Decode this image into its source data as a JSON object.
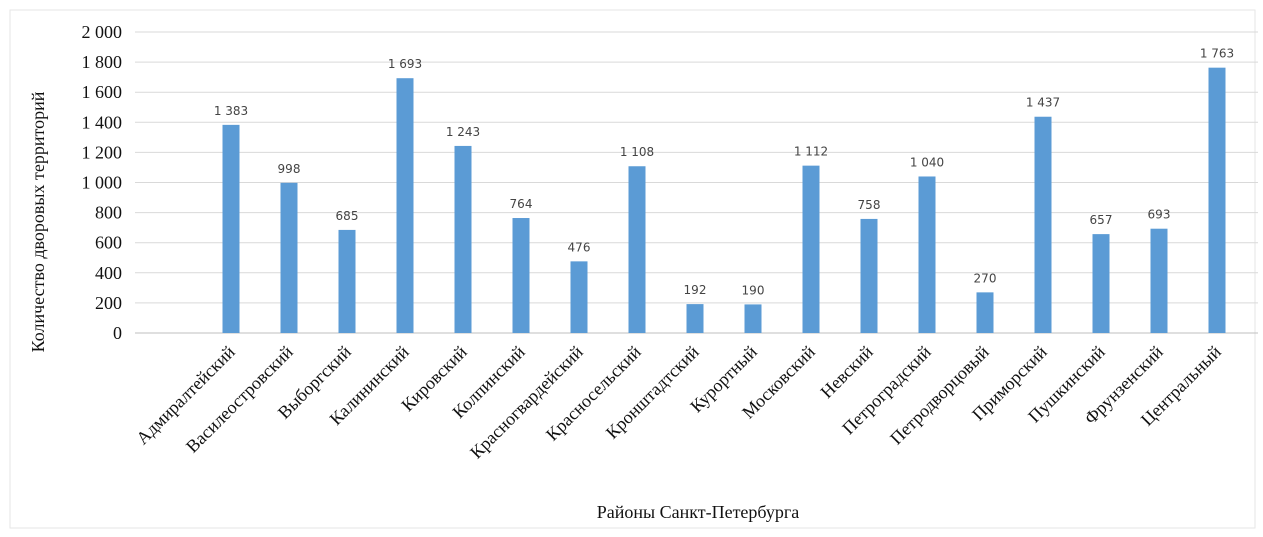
{
  "chart_data": {
    "type": "bar",
    "title": "",
    "xlabel": "Районы Санкт-Петербурга",
    "ylabel": "Количество дворовых территорий",
    "ylim": [
      0,
      2000
    ],
    "yticks": [
      0,
      200,
      400,
      600,
      800,
      1000,
      1200,
      1400,
      1600,
      1800,
      2000
    ],
    "ytick_labels": [
      "0",
      "200",
      "400",
      "600",
      "800",
      "1 000",
      "1 200",
      "1 400",
      "1 600",
      "1 800",
      "2 000"
    ],
    "grid": true,
    "legend": "none",
    "categories": [
      "Адмиралтейский",
      "Василеостровский",
      "Выборгский",
      "Калининский",
      "Кировский",
      "Колпинский",
      "Красногвардейский",
      "Красносельский",
      "Кронштадтский",
      "Курортный",
      "Московский",
      "Невский",
      "Петроградский",
      "Петродворцовый",
      "Приморский",
      "Пушкинский",
      "Фрунзенский",
      "Центральный"
    ],
    "values": [
      1383,
      998,
      685,
      1693,
      1243,
      764,
      476,
      1108,
      192,
      190,
      1112,
      758,
      1040,
      270,
      1437,
      657,
      693,
      1763
    ],
    "data_labels": [
      "1 383",
      "998",
      "685",
      "1 693",
      "1 243",
      "764",
      "476",
      "1 108",
      "192",
      "190",
      "1 112",
      "758",
      "1 040",
      "270",
      "1 437",
      "657",
      "693",
      "1 763"
    ],
    "bar_color": "#5b9bd5"
  }
}
